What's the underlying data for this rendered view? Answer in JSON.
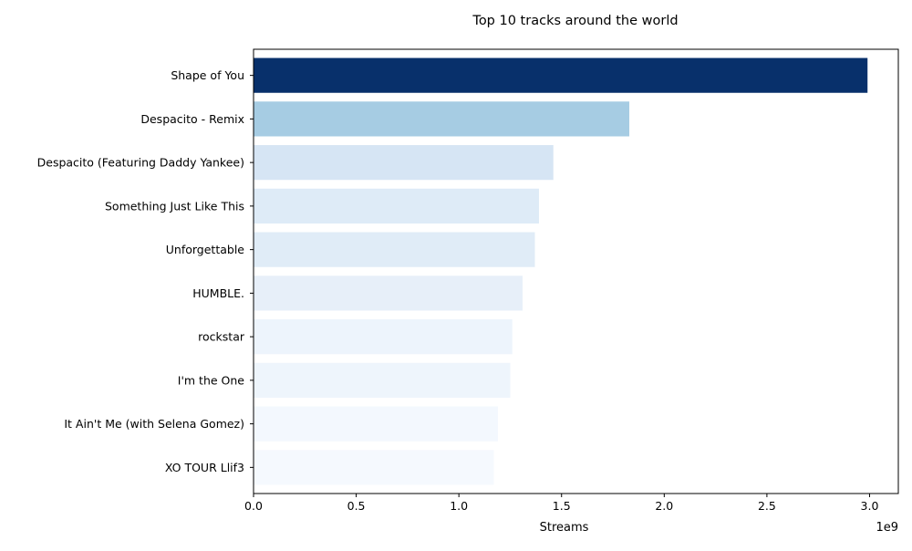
{
  "chart_data": {
    "type": "bar",
    "orientation": "horizontal",
    "title": "Top 10 tracks around the world",
    "xlabel": "Streams",
    "ylabel": "",
    "x_scale_label": "1e9",
    "xlim": [
      0,
      3.14
    ],
    "x_ticks": [
      0,
      0.5,
      1.0,
      1.5,
      2.0,
      2.5,
      3.0
    ],
    "x_tick_labels": [
      "0.0",
      "0.5",
      "1.0",
      "1.5",
      "2.0",
      "2.5",
      "3.0"
    ],
    "grid": false,
    "legend": "none",
    "categories": [
      "Shape of You",
      "Despacito - Remix",
      "Despacito (Featuring Daddy Yankee)",
      "Something Just Like This",
      "Unforgettable",
      "HUMBLE.",
      "rockstar",
      "I'm the One",
      "It Ain't Me (with Selena Gomez)",
      "XO TOUR Llif3"
    ],
    "values": [
      2.99,
      1.83,
      1.46,
      1.39,
      1.37,
      1.31,
      1.26,
      1.25,
      1.19,
      1.17
    ],
    "value_multiplier": 1000000000,
    "colors": [
      "#08306b",
      "#a6cce3",
      "#d6e5f4",
      "#deebf7",
      "#e0ecf7",
      "#e7eff9",
      "#edf4fc",
      "#eef5fc",
      "#f3f8fe",
      "#f5f9fe"
    ]
  }
}
